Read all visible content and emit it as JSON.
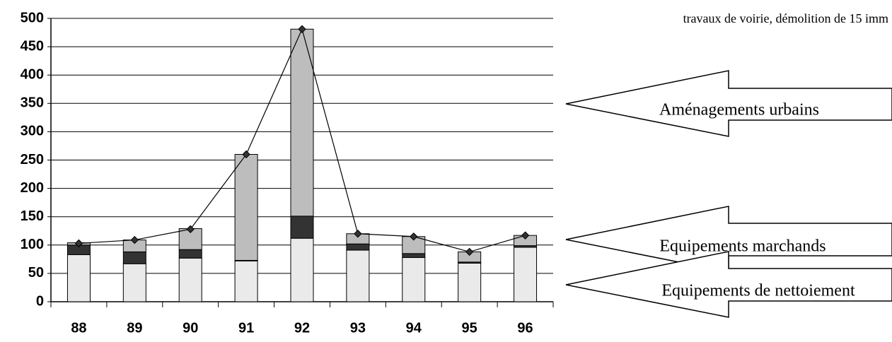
{
  "chart_data": {
    "type": "bar",
    "note": "travaux de voirie, démolition de 15 imm",
    "categories": [
      "88",
      "89",
      "90",
      "91",
      "92",
      "93",
      "94",
      "95",
      "96"
    ],
    "series": [
      {
        "name": "Equipements de nettoiement",
        "color": "#eaeaea",
        "values": [
          83,
          67,
          77,
          72,
          112,
          91,
          78,
          68,
          96
        ]
      },
      {
        "name": "Equipements marchands",
        "color": "#333333",
        "values": [
          17,
          21,
          15,
          1,
          39,
          11,
          7,
          2,
          3
        ]
      },
      {
        "name": "Aménagements urbains",
        "color": "#bdbdbd",
        "values": [
          4,
          21,
          37,
          187,
          330,
          18,
          30,
          18,
          18
        ]
      }
    ],
    "totals": [
      103,
      109,
      128,
      260,
      481,
      120,
      115,
      88,
      117
    ],
    "ylim": [
      0,
      500
    ],
    "yticks": [
      0,
      50,
      100,
      150,
      200,
      250,
      300,
      350,
      400,
      450,
      500
    ],
    "grid": true
  }
}
